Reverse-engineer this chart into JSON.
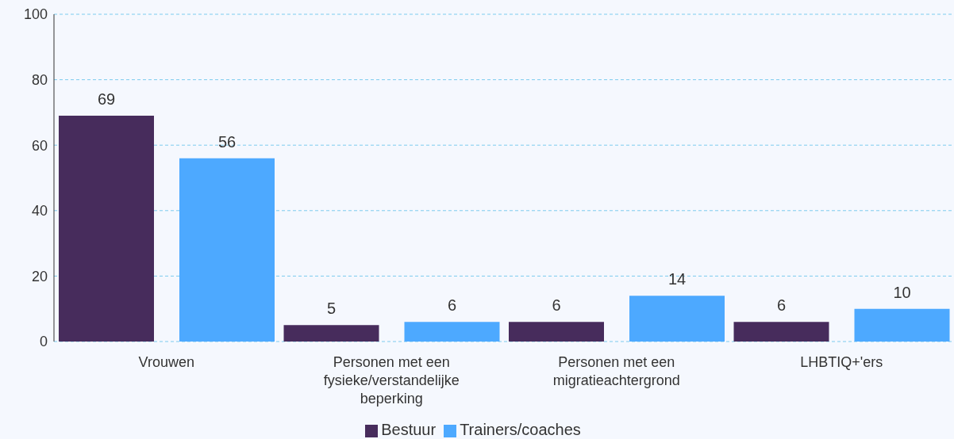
{
  "chart_data": {
    "type": "bar",
    "categories": [
      "Vrouwen",
      "Personen met een fysieke/verstandelijke beperking",
      "Personen met een migratieachtergrond",
      "LHBTIQ+'ers"
    ],
    "series": [
      {
        "name": "Bestuur",
        "color": "#472c5c",
        "values": [
          69,
          5,
          6,
          6
        ]
      },
      {
        "name": "Trainers/coaches",
        "color": "#4da9ff",
        "values": [
          56,
          6,
          14,
          10
        ]
      }
    ],
    "ylim": [
      0,
      100
    ],
    "yticks": [
      0,
      20,
      40,
      60,
      80,
      100
    ],
    "grid": "y",
    "legend": "bottom",
    "data_labels": true
  }
}
